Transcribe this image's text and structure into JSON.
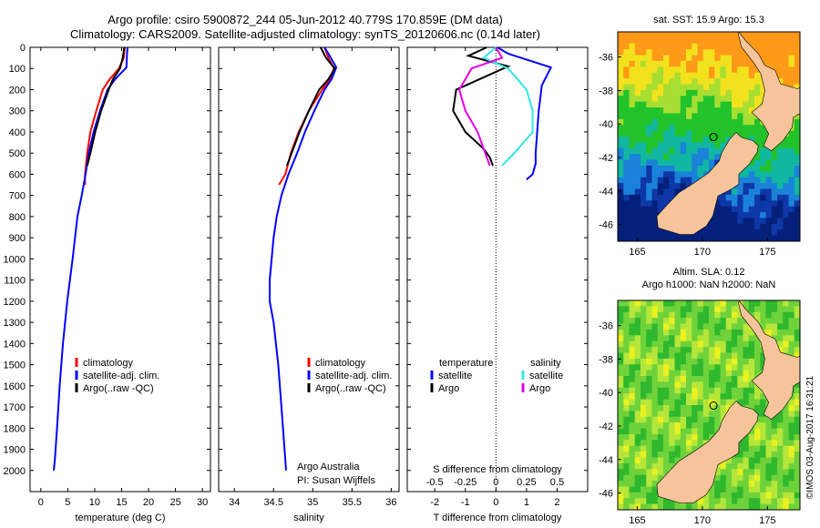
{
  "header": {
    "line1": "Argo profile: csiro 5900872_244 05-Jun-2012 40.779S 170.859E (DM data)",
    "line2": "Climatology: CARS2009. Satellite-adjusted climatology: synTS_20120606.nc (0.14d later)"
  },
  "colors": {
    "climatology": "#ff0000",
    "satellite": "#0000ff",
    "argo": "#000000",
    "sat_salinity": "#33e6e6",
    "argo_salinity": "#e600e6",
    "land": "#f5c49a"
  },
  "depth_ticks": [
    "0",
    "100",
    "200",
    "300",
    "400",
    "500",
    "600",
    "700",
    "800",
    "900",
    "1000",
    "1100",
    "1200",
    "1300",
    "1400",
    "1500",
    "1600",
    "1700",
    "1800",
    "1900",
    "2000"
  ],
  "chart_data": [
    {
      "type": "line",
      "xlabel": "temperature (deg C)",
      "xticks": [
        "0",
        "5",
        "10",
        "15",
        "20",
        "25",
        "30"
      ],
      "xlim": [
        -2,
        31.5
      ],
      "ylim": [
        2100,
        0
      ],
      "legend_placement": "lower-left",
      "legend": [
        "climatology",
        "satellite-adj. clim.",
        "Argo(..raw -QC)"
      ],
      "series": [
        {
          "name": "climatology",
          "color": "#ff0000",
          "x": [
            15.6,
            15.4,
            14.5,
            12.8,
            11.5,
            10.3,
            9.2,
            8.6,
            8.2,
            8.2
          ],
          "depth": [
            0,
            50,
            100,
            150,
            200,
            300,
            400,
            500,
            600,
            650
          ]
        },
        {
          "name": "satellite-adj. clim.",
          "color": "#0000ff",
          "x": [
            16.1,
            16.0,
            15.9,
            13.8,
            12.4,
            11.0,
            9.8,
            8.9,
            8.3,
            7.6,
            6.8,
            5.9,
            4.9,
            4.1,
            3.5,
            3.0,
            2.6,
            2.4
          ],
          "depth": [
            0,
            30,
            95,
            150,
            200,
            300,
            400,
            500,
            600,
            700,
            800,
            1000,
            1200,
            1400,
            1600,
            1800,
            1950,
            2000
          ]
        },
        {
          "name": "Argo(..raw -QC)",
          "color": "#000000",
          "x": [
            15.5,
            15.2,
            14.7,
            13.4,
            12.6,
            11.2,
            10.1,
            9.2,
            8.6
          ],
          "depth": [
            0,
            50,
            100,
            150,
            200,
            300,
            400,
            500,
            560
          ]
        }
      ]
    },
    {
      "type": "line",
      "xlabel": "salinity",
      "xticks": [
        "34",
        "34.5",
        "35",
        "35.5",
        "36"
      ],
      "xlim": [
        33.8,
        36.1
      ],
      "ylim": [
        2100,
        0
      ],
      "legend_placement": "lower-right",
      "legend": [
        "climatology",
        "satellite-adj. clim.",
        "Argo(..raw -QC)"
      ],
      "annotation": [
        "Argo Australia",
        "PI: Susan Wijffels"
      ],
      "series": [
        {
          "name": "climatology",
          "color": "#ff0000",
          "x": [
            35.15,
            35.2,
            35.27,
            35.22,
            35.12,
            34.95,
            34.82,
            34.72,
            34.65,
            34.57
          ],
          "depth": [
            0,
            50,
            100,
            150,
            200,
            300,
            400,
            500,
            600,
            650
          ]
        },
        {
          "name": "satellite-adj. clim.",
          "color": "#0000ff",
          "x": [
            35.15,
            35.2,
            35.3,
            35.24,
            35.15,
            35.02,
            34.9,
            34.8,
            34.69,
            34.6,
            34.54,
            34.5,
            34.45,
            34.45,
            34.5,
            34.56,
            34.6,
            34.64,
            34.66
          ],
          "depth": [
            0,
            30,
            95,
            150,
            200,
            300,
            400,
            500,
            600,
            700,
            800,
            900,
            1100,
            1200,
            1300,
            1500,
            1700,
            1900,
            2000
          ]
        },
        {
          "name": "Argo(..raw -QC)",
          "color": "#000000",
          "x": [
            35.1,
            35.17,
            35.28,
            35.2,
            35.08,
            34.95,
            34.83,
            34.73,
            34.67
          ],
          "depth": [
            0,
            50,
            100,
            150,
            200,
            300,
            400,
            500,
            560
          ]
        }
      ]
    },
    {
      "type": "line",
      "xlabel": "T difference from climatology",
      "x2label": "S difference from climatology",
      "xticks": [
        "-2",
        "-1",
        "0",
        "1",
        "2"
      ],
      "x2ticks": [
        "-0.5",
        "-0.25",
        "0",
        "0.25",
        "0.5"
      ],
      "xlim": [
        -2.9,
        3.0
      ],
      "ylim": [
        2100,
        0
      ],
      "legend_placement": "lower",
      "legend_headers": [
        "temperature",
        "salinity"
      ],
      "legend": [
        "satellite",
        "Argo",
        "satellite",
        "Argo"
      ],
      "series": [
        {
          "name": "satellite",
          "color": "#0000ff",
          "x": [
            0.05,
            0.4,
            1.8,
            1.5,
            1.4,
            1.35,
            1.3,
            1.3,
            1.2,
            1.0
          ],
          "depth": [
            0,
            30,
            95,
            180,
            300,
            400,
            500,
            550,
            600,
            625
          ]
        },
        {
          "name": "Argo",
          "color": "#000000",
          "x": [
            -0.3,
            -0.9,
            0.4,
            -1.3,
            -1.4,
            -1.0,
            -0.4,
            -0.2,
            -0.1
          ],
          "depth": [
            0,
            40,
            90,
            200,
            300,
            400,
            480,
            520,
            560
          ]
        },
        {
          "name": "satellite",
          "color": "#33e6e6",
          "x": [
            0.0,
            -0.1,
            0.1,
            0.25,
            0.3,
            0.3,
            0.15,
            0.05
          ],
          "depth": [
            0,
            50,
            100,
            200,
            300,
            400,
            500,
            560
          ]
        },
        {
          "name": "Argo",
          "color": "#e600e6",
          "x": [
            0.0,
            0.05,
            -0.2,
            -0.3,
            -0.25,
            -0.15,
            -0.05
          ],
          "depth": [
            0,
            50,
            100,
            200,
            300,
            400,
            560
          ]
        }
      ]
    }
  ],
  "maps": [
    {
      "title": "sat. SST: 15.9 Argo: 15.3",
      "xticks": [
        "165",
        "170",
        "175"
      ],
      "yticks": [
        "-36",
        "-38",
        "-40",
        "-42",
        "-44",
        "-46"
      ],
      "xlim": [
        163.5,
        177.5
      ],
      "ylim": [
        -47,
        -34.5
      ],
      "argo_position": [
        170.859,
        -40.779
      ]
    },
    {
      "title": "Altim. SLA: 0.12",
      "subtitle": "Argo h1000: NaN h2000: NaN",
      "xticks": [
        "165",
        "170",
        "175"
      ],
      "yticks": [
        "-36",
        "-38",
        "-40",
        "-42",
        "-44",
        "-46"
      ],
      "xlim": [
        163.5,
        177.5
      ],
      "ylim": [
        -47,
        -34.5
      ],
      "argo_position": [
        170.859,
        -40.779
      ]
    }
  ],
  "stamp": "©IMOS 03-Aug-2017 16:31:21"
}
